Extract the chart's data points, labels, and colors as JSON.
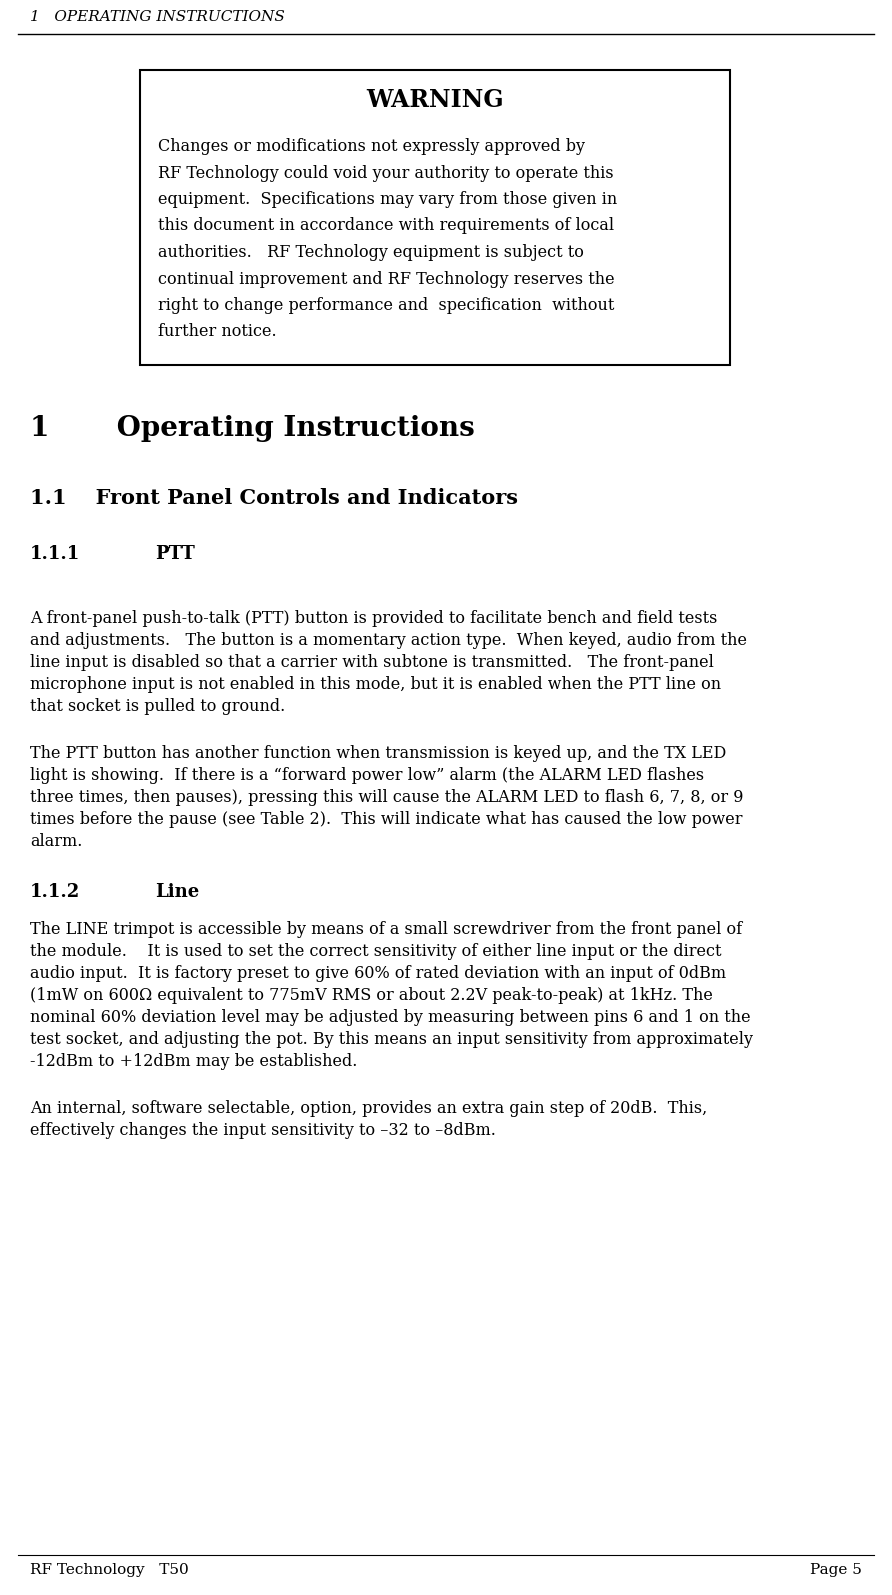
{
  "header_text": "1   OPERATING INSTRUCTIONS",
  "footer_left": "RF Technology   T50",
  "footer_right": "Page 5",
  "warning_title": "WARNING",
  "warn_lines": [
    "Changes or modifications not expressly approved by",
    "RF Technology could void your authority to operate this",
    "equipment.  Specifications may vary from those given in",
    "this document in accordance with requirements of local",
    "authorities.   RF Technology equipment is subject to",
    "continual improvement and RF Technology reserves the",
    "right to change performance and  specification  without",
    "further notice."
  ],
  "section1_title": "1       Operating Instructions",
  "section11_title": "1.1    Front Panel Controls and Indicators",
  "section111_num": "1.1.1",
  "section111_label": "PTT",
  "para1_lines": [
    "A front-panel push-to-talk (PTT) button is provided to facilitate bench and field tests",
    "and adjustments.   The button is a momentary action type.  When keyed, audio from the",
    "line input is disabled so that a carrier with subtone is transmitted.   The front-panel",
    "microphone input is not enabled in this mode, but it is enabled when the PTT line on",
    "that socket is pulled to ground."
  ],
  "para2_lines": [
    "The PTT button has another function when transmission is keyed up, and the TX LED",
    "light is showing.  If there is a “forward power low” alarm (the ALARM LED flashes",
    "three times, then pauses), pressing this will cause the ALARM LED to flash 6, 7, 8, or 9",
    "times before the pause (see Table 2).  This will indicate what has caused the low power",
    "alarm."
  ],
  "section112_num": "1.1.2",
  "section112_label": "Line",
  "para3_lines": [
    "The LINE trimpot is accessible by means of a small screwdriver from the front panel of",
    "the module.    It is used to set the correct sensitivity of either line input or the direct",
    "audio input.  It is factory preset to give 60% of rated deviation with an input of 0dBm",
    "(1mW on 600Ω equivalent to 775mV RMS or about 2.2V peak-to-peak) at 1kHz. The",
    "nominal 60% deviation level may be adjusted by measuring between pins 6 and 1 on the",
    "test socket, and adjusting the pot. By this means an input sensitivity from approximately",
    "-12dBm to +12dBm may be established."
  ],
  "para4_lines": [
    "An internal, software selectable, option, provides an extra gain step of 20dB.  This,",
    "effectively changes the input sensitivity to –32 to –8dBm."
  ],
  "bg_color": "#ffffff",
  "text_color": "#000000"
}
